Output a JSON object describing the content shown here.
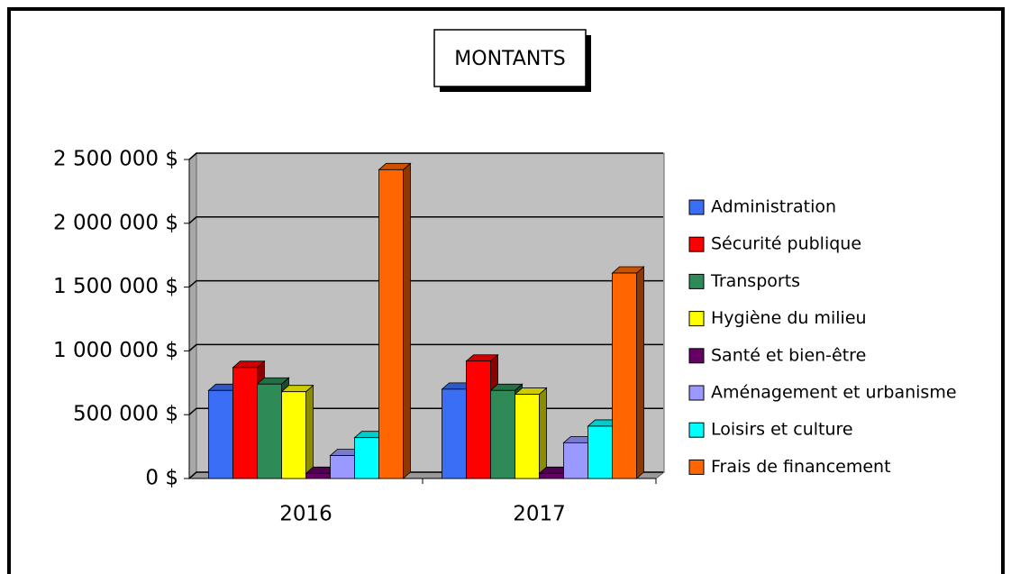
{
  "chart_data": {
    "type": "bar3d",
    "title": "MONTANTS",
    "categories": [
      "2016",
      "2017"
    ],
    "series": [
      {
        "name": "Administration",
        "color": "#3a6ef5",
        "values": [
          690000,
          700000
        ]
      },
      {
        "name": "Sécurité publique",
        "color": "#ff0000",
        "values": [
          870000,
          920000
        ]
      },
      {
        "name": "Transports",
        "color": "#2e8b57",
        "values": [
          740000,
          690000
        ]
      },
      {
        "name": "Hygiène du milieu",
        "color": "#ffff00",
        "values": [
          680000,
          660000
        ]
      },
      {
        "name": "Santé et bien-être",
        "color": "#660066",
        "values": [
          40000,
          40000
        ]
      },
      {
        "name": "Aménagement et urbanisme",
        "color": "#9999ff",
        "values": [
          180000,
          280000
        ]
      },
      {
        "name": "Loisirs et culture",
        "color": "#00ffff",
        "values": [
          320000,
          410000
        ]
      },
      {
        "name": "Frais de financement",
        "color": "#ff6600",
        "values": [
          2420000,
          1610000
        ]
      }
    ],
    "ylim": [
      0,
      2500000
    ],
    "yticks": [
      {
        "value": 0,
        "label": "0 $"
      },
      {
        "value": 500000,
        "label": "500 000 $"
      },
      {
        "value": 1000000,
        "label": "1 000 000 $"
      },
      {
        "value": 1500000,
        "label": "1 500 000 $"
      },
      {
        "value": 2000000,
        "label": "2 000 000 $"
      },
      {
        "value": 2500000,
        "label": "2 500 000 $"
      }
    ],
    "grid": true,
    "legend": "right"
  }
}
